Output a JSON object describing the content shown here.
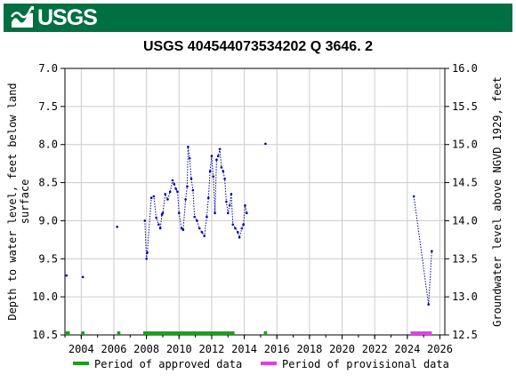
{
  "header": {
    "logo_text": "USGS",
    "banner_color": "#006f41",
    "logo_icon": "usgs-wave-icon"
  },
  "chart_data": {
    "type": "scatter",
    "title": "USGS 404544073534202 Q  3646. 2",
    "ylabel_left": "Depth to water level, feet below land surface",
    "ylabel_right": "Groundwater level above NGVD 1929, feet",
    "xlim": [
      2003.0,
      2026.3
    ],
    "ylim_left": [
      10.5,
      7.0
    ],
    "ylim_right": [
      12.5,
      16.0
    ],
    "x_ticks": [
      "2004",
      "2006",
      "2008",
      "2010",
      "2012",
      "2014",
      "2016",
      "2018",
      "2020",
      "2022",
      "2024",
      "2026"
    ],
    "y_ticks_left": [
      "7.0",
      "7.5",
      "8.0",
      "8.5",
      "9.0",
      "9.5",
      "10.0",
      "10.5"
    ],
    "y_ticks_right": [
      "16.0",
      "15.5",
      "15.0",
      "14.5",
      "14.0",
      "13.5",
      "13.0",
      "12.5"
    ],
    "grid": true,
    "series": [
      {
        "style": "dotted-line-points",
        "color": "#0000aa",
        "segments": [
          [
            [
              2003.1,
              9.72
            ]
          ],
          [
            [
              2004.1,
              9.74
            ]
          ],
          [
            [
              2006.2,
              9.08
            ]
          ],
          [
            [
              2007.9,
              9.0
            ],
            [
              2008.0,
              9.5
            ],
            [
              2008.05,
              9.42
            ],
            [
              2008.3,
              8.7
            ],
            [
              2008.45,
              8.68
            ],
            [
              2008.6,
              8.96
            ],
            [
              2008.75,
              9.05
            ],
            [
              2008.85,
              9.1
            ],
            [
              2008.95,
              8.92
            ],
            [
              2009.0,
              8.9
            ],
            [
              2009.15,
              8.65
            ],
            [
              2009.3,
              8.72
            ],
            [
              2009.45,
              8.62
            ],
            [
              2009.6,
              8.47
            ],
            [
              2009.7,
              8.52
            ],
            [
              2009.8,
              8.58
            ],
            [
              2009.9,
              8.62
            ],
            [
              2010.0,
              8.9
            ],
            [
              2010.15,
              9.1
            ],
            [
              2010.25,
              9.12
            ],
            [
              2010.4,
              8.72
            ],
            [
              2010.5,
              8.55
            ],
            [
              2010.55,
              8.03
            ],
            [
              2010.65,
              8.18
            ],
            [
              2010.75,
              8.45
            ],
            [
              2010.85,
              8.6
            ],
            [
              2010.95,
              8.95
            ],
            [
              2011.1,
              9.0
            ],
            [
              2011.25,
              9.1
            ],
            [
              2011.4,
              9.15
            ],
            [
              2011.55,
              9.2
            ],
            [
              2011.7,
              8.95
            ],
            [
              2011.8,
              8.7
            ],
            [
              2011.9,
              8.35
            ],
            [
              2012.0,
              8.15
            ],
            [
              2012.1,
              8.42
            ],
            [
              2012.2,
              8.9
            ],
            [
              2012.3,
              8.2
            ],
            [
              2012.4,
              8.15
            ],
            [
              2012.5,
              8.06
            ],
            [
              2012.6,
              8.3
            ],
            [
              2012.7,
              8.35
            ],
            [
              2012.8,
              8.45
            ],
            [
              2012.9,
              8.75
            ],
            [
              2013.0,
              8.9
            ],
            [
              2013.1,
              8.8
            ],
            [
              2013.2,
              8.65
            ],
            [
              2013.3,
              9.05
            ],
            [
              2013.45,
              9.1
            ],
            [
              2013.6,
              9.15
            ],
            [
              2013.7,
              9.22
            ],
            [
              2013.85,
              9.1
            ],
            [
              2013.95,
              9.05
            ],
            [
              2014.05,
              8.8
            ],
            [
              2014.15,
              8.9
            ]
          ],
          [
            [
              2015.3,
              7.99
            ]
          ],
          [
            [
              2024.4,
              8.68
            ],
            [
              2025.3,
              10.1
            ],
            [
              2025.5,
              9.4
            ]
          ]
        ]
      }
    ],
    "periods": [
      {
        "label": "Period of approved data",
        "color": "#1e9d1e",
        "ranges": [
          [
            2003.0,
            2003.3
          ],
          [
            2004.0,
            2004.2
          ],
          [
            2006.2,
            2006.4
          ],
          [
            2007.8,
            2013.4
          ],
          [
            2015.2,
            2015.4
          ]
        ]
      },
      {
        "label": "Period of provisional data",
        "color": "#dd44dd",
        "ranges": [
          [
            2024.2,
            2025.5
          ]
        ]
      }
    ],
    "legend_position": "bottom"
  }
}
